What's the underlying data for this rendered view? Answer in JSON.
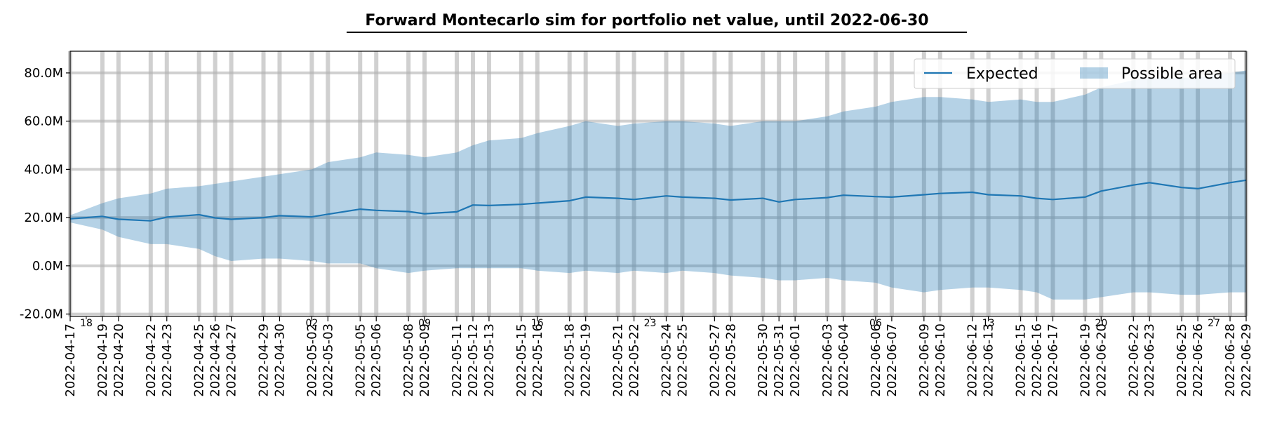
{
  "chart_data": {
    "type": "area",
    "title": "Forward Montecarlo sim for portfolio net value, until 2022-06-30",
    "xlabel": "",
    "ylabel": "",
    "x_range": [
      "2022-04-17",
      "2022-06-29"
    ],
    "ylim": [
      -21000000,
      89000000
    ],
    "y_ticks": [
      -20000000,
      0,
      20000000,
      40000000,
      60000000,
      80000000
    ],
    "y_tick_labels": [
      "-20.0M",
      "0.0M",
      "20.0M",
      "40.0M",
      "60.0M",
      "80.0M"
    ],
    "x_major_ticks": [
      "2022-04-17",
      "2022-04-19",
      "2022-04-20",
      "2022-04-22",
      "2022-04-23",
      "2022-04-25",
      "2022-04-26",
      "2022-04-27",
      "2022-04-29",
      "2022-04-30",
      "2022-05-02",
      "2022-05-03",
      "2022-05-05",
      "2022-05-06",
      "2022-05-08",
      "2022-05-09",
      "2022-05-11",
      "2022-05-12",
      "2022-05-13",
      "2022-05-15",
      "2022-05-16",
      "2022-05-18",
      "2022-05-19",
      "2022-05-21",
      "2022-05-22",
      "2022-05-24",
      "2022-05-25",
      "2022-05-27",
      "2022-05-28",
      "2022-05-30",
      "2022-05-31",
      "2022-06-01",
      "2022-06-03",
      "2022-06-04",
      "2022-06-06",
      "2022-06-07",
      "2022-06-09",
      "2022-06-10",
      "2022-06-12",
      "2022-06-13",
      "2022-06-15",
      "2022-06-16",
      "2022-06-17",
      "2022-06-19",
      "2022-06-20",
      "2022-06-22",
      "2022-06-23",
      "2022-06-25",
      "2022-06-26",
      "2022-06-28",
      "2022-06-29"
    ],
    "x_minor_ticks": [
      {
        "date": "2022-04-18",
        "label": "18"
      },
      {
        "date": "2022-05-02",
        "label": "02"
      },
      {
        "date": "2022-05-09",
        "label": "09"
      },
      {
        "date": "2022-05-16",
        "label": "16"
      },
      {
        "date": "2022-05-23",
        "label": "23"
      },
      {
        "date": "2022-06-06",
        "label": "06"
      },
      {
        "date": "2022-06-13",
        "label": "13"
      },
      {
        "date": "2022-06-20",
        "label": "20"
      },
      {
        "date": "2022-06-27",
        "label": "27"
      }
    ],
    "grid": true,
    "legend_position": "top-right",
    "series": [
      {
        "name": "Expected",
        "kind": "line",
        "color": "#1f77b4",
        "points": [
          [
            "2022-04-17",
            19.5
          ],
          [
            "2022-04-19",
            20.5
          ],
          [
            "2022-04-20",
            19.3
          ],
          [
            "2022-04-22",
            18.7
          ],
          [
            "2022-04-23",
            20.2
          ],
          [
            "2022-04-25",
            21.2
          ],
          [
            "2022-04-26",
            19.9
          ],
          [
            "2022-04-27",
            19.3
          ],
          [
            "2022-04-29",
            20.0
          ],
          [
            "2022-04-30",
            20.8
          ],
          [
            "2022-05-02",
            20.3
          ],
          [
            "2022-05-03",
            21.4
          ],
          [
            "2022-05-05",
            23.5
          ],
          [
            "2022-05-06",
            23.0
          ],
          [
            "2022-05-08",
            22.5
          ],
          [
            "2022-05-09",
            21.6
          ],
          [
            "2022-05-11",
            22.4
          ],
          [
            "2022-05-12",
            25.2
          ],
          [
            "2022-05-13",
            25.0
          ],
          [
            "2022-05-15",
            25.5
          ],
          [
            "2022-05-16",
            26.0
          ],
          [
            "2022-05-18",
            27.0
          ],
          [
            "2022-05-19",
            28.5
          ],
          [
            "2022-05-21",
            28.0
          ],
          [
            "2022-05-22",
            27.5
          ],
          [
            "2022-05-24",
            29.0
          ],
          [
            "2022-05-25",
            28.5
          ],
          [
            "2022-05-27",
            28.0
          ],
          [
            "2022-05-28",
            27.3
          ],
          [
            "2022-05-30",
            28.0
          ],
          [
            "2022-05-31",
            26.5
          ],
          [
            "2022-06-01",
            27.5
          ],
          [
            "2022-06-03",
            28.3
          ],
          [
            "2022-06-04",
            29.3
          ],
          [
            "2022-06-06",
            28.7
          ],
          [
            "2022-06-07",
            28.5
          ],
          [
            "2022-06-09",
            29.5
          ],
          [
            "2022-06-10",
            30.0
          ],
          [
            "2022-06-12",
            30.5
          ],
          [
            "2022-06-13",
            29.5
          ],
          [
            "2022-06-15",
            29.0
          ],
          [
            "2022-06-16",
            28.0
          ],
          [
            "2022-06-17",
            27.5
          ],
          [
            "2022-06-19",
            28.5
          ],
          [
            "2022-06-20",
            31.0
          ],
          [
            "2022-06-22",
            33.5
          ],
          [
            "2022-06-23",
            34.5
          ],
          [
            "2022-06-25",
            32.5
          ],
          [
            "2022-06-26",
            32.0
          ],
          [
            "2022-06-28",
            34.5
          ],
          [
            "2022-06-29",
            35.5
          ]
        ]
      },
      {
        "name": "Possible area",
        "kind": "band",
        "color": "#1f77b4",
        "opacity": 0.33,
        "upper": [
          [
            "2022-04-17",
            21
          ],
          [
            "2022-04-19",
            26
          ],
          [
            "2022-04-20",
            28
          ],
          [
            "2022-04-22",
            30
          ],
          [
            "2022-04-23",
            32
          ],
          [
            "2022-04-25",
            33
          ],
          [
            "2022-04-26",
            34
          ],
          [
            "2022-04-27",
            35
          ],
          [
            "2022-04-29",
            37
          ],
          [
            "2022-04-30",
            38
          ],
          [
            "2022-05-02",
            40
          ],
          [
            "2022-05-03",
            43
          ],
          [
            "2022-05-05",
            45
          ],
          [
            "2022-05-06",
            47
          ],
          [
            "2022-05-08",
            46
          ],
          [
            "2022-05-09",
            45
          ],
          [
            "2022-05-11",
            47
          ],
          [
            "2022-05-12",
            50
          ],
          [
            "2022-05-13",
            52
          ],
          [
            "2022-05-15",
            53
          ],
          [
            "2022-05-16",
            55
          ],
          [
            "2022-05-18",
            58
          ],
          [
            "2022-05-19",
            60
          ],
          [
            "2022-05-21",
            58
          ],
          [
            "2022-05-22",
            59
          ],
          [
            "2022-05-24",
            60
          ],
          [
            "2022-05-25",
            60
          ],
          [
            "2022-05-27",
            59
          ],
          [
            "2022-05-28",
            58
          ],
          [
            "2022-05-30",
            60
          ],
          [
            "2022-05-31",
            60
          ],
          [
            "2022-06-01",
            60
          ],
          [
            "2022-06-03",
            62
          ],
          [
            "2022-06-04",
            64
          ],
          [
            "2022-06-06",
            66
          ],
          [
            "2022-06-07",
            68
          ],
          [
            "2022-06-09",
            70
          ],
          [
            "2022-06-10",
            70
          ],
          [
            "2022-06-12",
            69
          ],
          [
            "2022-06-13",
            68
          ],
          [
            "2022-06-15",
            69
          ],
          [
            "2022-06-16",
            68
          ],
          [
            "2022-06-17",
            68
          ],
          [
            "2022-06-19",
            71
          ],
          [
            "2022-06-20",
            74
          ],
          [
            "2022-06-22",
            77
          ],
          [
            "2022-06-23",
            78
          ],
          [
            "2022-06-25",
            78
          ],
          [
            "2022-06-26",
            78
          ],
          [
            "2022-06-28",
            80
          ],
          [
            "2022-06-29",
            81
          ]
        ],
        "lower": [
          [
            "2022-04-17",
            18
          ],
          [
            "2022-04-19",
            15
          ],
          [
            "2022-04-20",
            12
          ],
          [
            "2022-04-22",
            9
          ],
          [
            "2022-04-23",
            9
          ],
          [
            "2022-04-25",
            7
          ],
          [
            "2022-04-26",
            4
          ],
          [
            "2022-04-27",
            2
          ],
          [
            "2022-04-29",
            3
          ],
          [
            "2022-04-30",
            3
          ],
          [
            "2022-05-02",
            2
          ],
          [
            "2022-05-03",
            1
          ],
          [
            "2022-05-05",
            1
          ],
          [
            "2022-05-06",
            -1
          ],
          [
            "2022-05-08",
            -3
          ],
          [
            "2022-05-09",
            -2
          ],
          [
            "2022-05-11",
            -1
          ],
          [
            "2022-05-12",
            -1
          ],
          [
            "2022-05-13",
            -1
          ],
          [
            "2022-05-15",
            -1
          ],
          [
            "2022-05-16",
            -2
          ],
          [
            "2022-05-18",
            -3
          ],
          [
            "2022-05-19",
            -2
          ],
          [
            "2022-05-21",
            -3
          ],
          [
            "2022-05-22",
            -2
          ],
          [
            "2022-05-24",
            -3
          ],
          [
            "2022-05-25",
            -2
          ],
          [
            "2022-05-27",
            -3
          ],
          [
            "2022-05-28",
            -4
          ],
          [
            "2022-05-30",
            -5
          ],
          [
            "2022-05-31",
            -6
          ],
          [
            "2022-06-01",
            -6
          ],
          [
            "2022-06-03",
            -5
          ],
          [
            "2022-06-04",
            -6
          ],
          [
            "2022-06-06",
            -7
          ],
          [
            "2022-06-07",
            -9
          ],
          [
            "2022-06-09",
            -11
          ],
          [
            "2022-06-10",
            -10
          ],
          [
            "2022-06-12",
            -9
          ],
          [
            "2022-06-13",
            -9
          ],
          [
            "2022-06-15",
            -10
          ],
          [
            "2022-06-16",
            -11
          ],
          [
            "2022-06-17",
            -14
          ],
          [
            "2022-06-19",
            -14
          ],
          [
            "2022-06-20",
            -13
          ],
          [
            "2022-06-22",
            -11
          ],
          [
            "2022-06-23",
            -11
          ],
          [
            "2022-06-25",
            -12
          ],
          [
            "2022-06-26",
            -12
          ],
          [
            "2022-06-28",
            -11
          ],
          [
            "2022-06-29",
            -11
          ]
        ]
      }
    ]
  }
}
